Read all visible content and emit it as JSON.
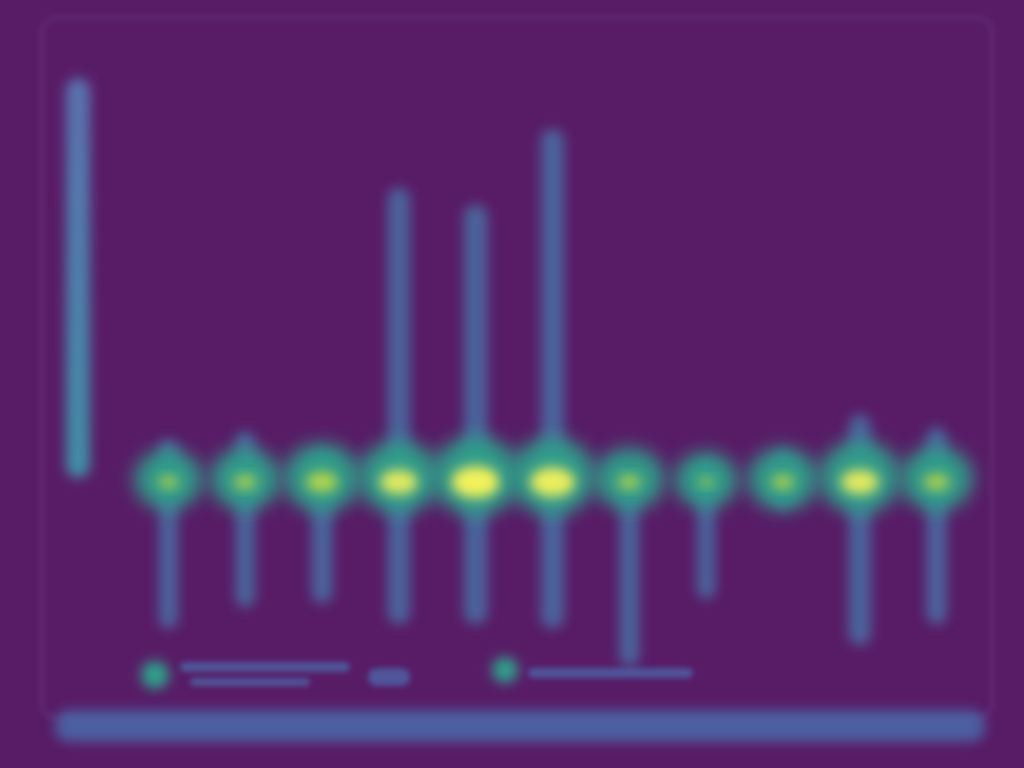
{
  "colors": {
    "background": "#581c66",
    "frame": "#5e2a72",
    "axis": "#5a3f80",
    "column": "#4a6fa5",
    "mid": "#2fa08a",
    "hot": "#c9e040",
    "peak": "#f2f25a",
    "colorbar_top": "#5a72b0",
    "colorbar_bottom": "#3f8fa6",
    "caption": "#4a6fb0"
  },
  "chart_data": {
    "type": "heatmap",
    "title": "",
    "xlabel": "",
    "ylabel": "",
    "ylim": [
      -1,
      4
    ],
    "baseline": 0,
    "series": [
      {
        "x": 1,
        "peak": 0.6,
        "low": -1.65,
        "core": 0.55
      },
      {
        "x": 2,
        "peak": 0.7,
        "low": -1.4,
        "core": 0.6
      },
      {
        "x": 3,
        "peak": 0.45,
        "low": -1.35,
        "core": 0.75
      },
      {
        "x": 4,
        "peak": 3.6,
        "low": -1.6,
        "core": 0.85
      },
      {
        "x": 5,
        "peak": 3.4,
        "low": -1.6,
        "core": 1.0
      },
      {
        "x": 6,
        "peak": 4.3,
        "low": -1.65,
        "core": 0.95
      },
      {
        "x": 7,
        "peak": 0.2,
        "low": -2.1,
        "core": 0.6
      },
      {
        "x": 8,
        "peak": 0.35,
        "low": -1.3,
        "core": 0.45
      },
      {
        "x": 9,
        "peak": 0.45,
        "low": -0.2,
        "core": 0.6
      },
      {
        "x": 10,
        "peak": 0.9,
        "low": -1.85,
        "core": 0.85
      },
      {
        "x": 11,
        "peak": 0.75,
        "low": -1.6,
        "core": 0.65
      }
    ],
    "legend": {
      "placement": "bottom-left",
      "entries": 2
    },
    "colorbar": {
      "placement": "left"
    }
  }
}
